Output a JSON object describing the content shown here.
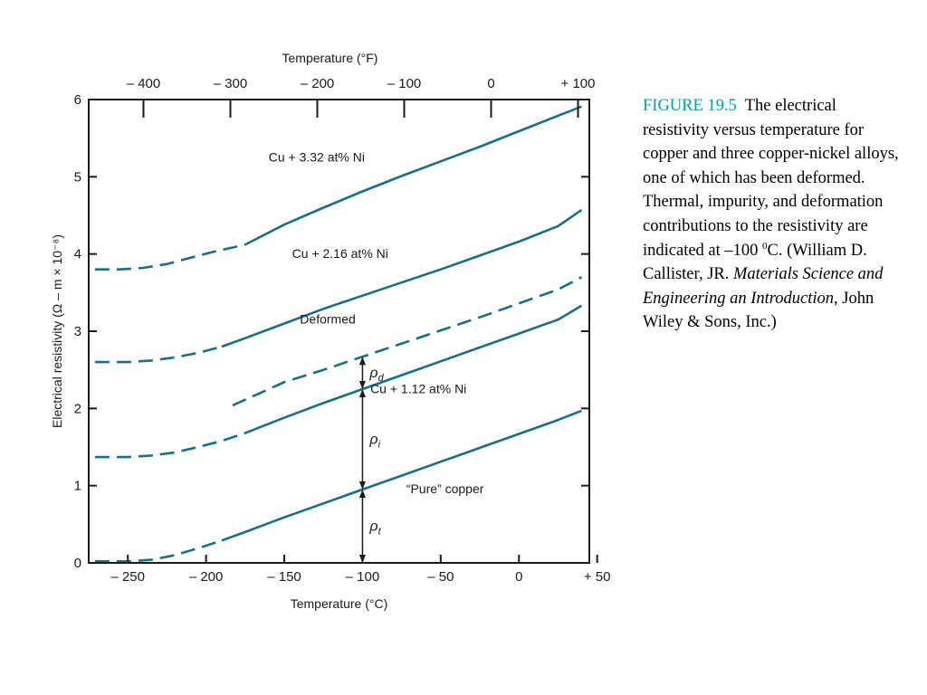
{
  "colors": {
    "curve": "#1a6f86",
    "axis": "#1a1a1a",
    "caption_label": "#00a3a3"
  },
  "caption": {
    "label": "FIGURE 19.5",
    "text_1": "The electrical resistivity versus temperature for copper and three copper-nickel alloys, one of which has been deformed. Thermal, impurity, and deformation contributions to the resistivity are indicated at –100 ",
    "superscript": "0",
    "text_2": "C. (William D. Callister, JR. ",
    "book_title": "Materials Science and Engineering an Introduction",
    "text_3": ", John Wiley & Sons, Inc.)"
  },
  "chart_data": {
    "type": "line",
    "xlabel": "Temperature (°C)",
    "x2label": "Temperature (°F)",
    "ylabel": "Electrical resistivity (Ω – m × 10⁻⁸)",
    "xlim": [
      -275,
      45
    ],
    "ylim": [
      0,
      6
    ],
    "x_ticks": [
      -250,
      -200,
      -150,
      -100,
      -50,
      0,
      50
    ],
    "x_tick_labels": [
      "– 250",
      "– 200",
      "– 150",
      "– 100",
      "– 50",
      "0",
      "+ 50"
    ],
    "x2_ticks": [
      -400,
      -300,
      -200,
      -100,
      0,
      100
    ],
    "x2_tick_labels": [
      "– 400",
      "– 300",
      "– 200",
      "– 100",
      "0",
      "+ 100"
    ],
    "y_ticks": [
      0,
      1,
      2,
      3,
      4,
      5,
      6
    ],
    "y_tick_labels": [
      "0",
      "1",
      "2",
      "3",
      "4",
      "5",
      "6"
    ],
    "grid": false,
    "series": [
      {
        "name": "Cu + 3.32 at% Ni",
        "style": "solid",
        "x": [
          -175,
          -150,
          -125,
          -100,
          -75,
          -50,
          -25,
          0,
          25,
          40
        ],
        "y": [
          4.12,
          4.38,
          4.6,
          4.81,
          5.01,
          5.2,
          5.39,
          5.59,
          5.79,
          5.91
        ]
      },
      {
        "name": "Cu + 3.32 at% Ni",
        "style": "dashed",
        "x": [
          -271,
          -255,
          -240,
          -225,
          -210,
          -195,
          -175
        ],
        "y": [
          3.8,
          3.8,
          3.82,
          3.87,
          3.95,
          4.03,
          4.12
        ]
      },
      {
        "name": "Cu + 2.16 at% Ni",
        "style": "solid",
        "x": [
          -190,
          -175,
          -150,
          -125,
          -100,
          -75,
          -50,
          -25,
          0,
          25,
          40
        ],
        "y": [
          2.8,
          2.91,
          3.1,
          3.29,
          3.46,
          3.63,
          3.8,
          3.98,
          4.16,
          4.36,
          4.57
        ]
      },
      {
        "name": "Cu + 2.16 at% Ni",
        "style": "dashed",
        "x": [
          -271,
          -250,
          -235,
          -220,
          -205,
          -190
        ],
        "y": [
          2.6,
          2.6,
          2.62,
          2.66,
          2.72,
          2.8
        ]
      },
      {
        "name": "Deformed",
        "style": "dashed",
        "x": [
          -183,
          -150,
          -125,
          -100,
          -75,
          -50,
          -25,
          0,
          25,
          40
        ],
        "y": [
          2.04,
          2.34,
          2.5,
          2.67,
          2.84,
          3.01,
          3.18,
          3.36,
          3.54,
          3.7
        ]
      },
      {
        "name": "Cu + 1.12 at% Ni",
        "style": "solid",
        "x": [
          -175,
          -150,
          -125,
          -100,
          -75,
          -50,
          -25,
          0,
          25,
          40
        ],
        "y": [
          1.68,
          1.88,
          2.07,
          2.25,
          2.43,
          2.61,
          2.79,
          2.97,
          3.15,
          3.33
        ]
      },
      {
        "name": "Cu + 1.12 at% Ni",
        "style": "dashed",
        "x": [
          -271,
          -250,
          -235,
          -220,
          -205,
          -190,
          -175
        ],
        "y": [
          1.37,
          1.37,
          1.39,
          1.43,
          1.5,
          1.58,
          1.68
        ]
      },
      {
        "name": "\"Pure\" copper",
        "style": "solid",
        "x": [
          -190,
          -175,
          -150,
          -125,
          -100,
          -75,
          -50,
          -25,
          0,
          25,
          40
        ],
        "y": [
          0.29,
          0.4,
          0.59,
          0.77,
          0.95,
          1.13,
          1.31,
          1.49,
          1.67,
          1.85,
          1.97
        ]
      },
      {
        "name": "\"Pure\" copper",
        "style": "dashed",
        "x": [
          -271,
          -250,
          -235,
          -220,
          -205,
          -190
        ],
        "y": [
          0.02,
          0.02,
          0.04,
          0.1,
          0.19,
          0.29
        ]
      }
    ],
    "curve_labels": [
      {
        "text": "Cu + 3.32 at% Ni",
        "x": -160,
        "y": 5.2
      },
      {
        "text": "Cu + 2.16 at% Ni",
        "x": -145,
        "y": 3.95
      },
      {
        "text": "Deformed",
        "x": -140,
        "y": 3.1
      },
      {
        "text": "Cu + 1.12 at% Ni",
        "x": -95,
        "y": 2.2
      },
      {
        "text": "“Pure” copper",
        "x": -72,
        "y": 0.9
      }
    ],
    "annotations": [
      {
        "symbol": "ρ",
        "subscript": "d",
        "name": "deformation",
        "x": -100,
        "y_from": 2.25,
        "y_to": 2.67
      },
      {
        "symbol": "ρ",
        "subscript": "i",
        "name": "impurity",
        "x": -100,
        "y_from": 0.95,
        "y_to": 2.25
      },
      {
        "symbol": "ρ",
        "subscript": "t",
        "name": "thermal",
        "x": -100,
        "y_from": 0,
        "y_to": 0.95
      }
    ]
  }
}
